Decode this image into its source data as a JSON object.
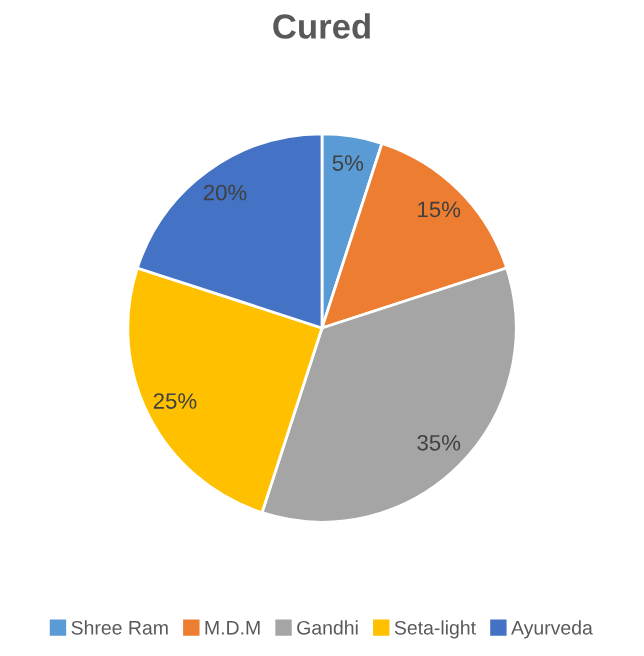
{
  "chart_data": {
    "type": "pie",
    "title": "Cured",
    "categories": [
      "Shree Ram",
      "M.D.M",
      "Gandhi",
      "Seta-light",
      "Ayurveda"
    ],
    "values": [
      5,
      15,
      35,
      25,
      20
    ],
    "value_labels": [
      "5%",
      "15%",
      "35%",
      "25%",
      "20%"
    ],
    "colors": [
      "#5b9bd5",
      "#ed7d31",
      "#a5a5a5",
      "#ffc000",
      "#4472c4"
    ],
    "legend": "bottom"
  }
}
